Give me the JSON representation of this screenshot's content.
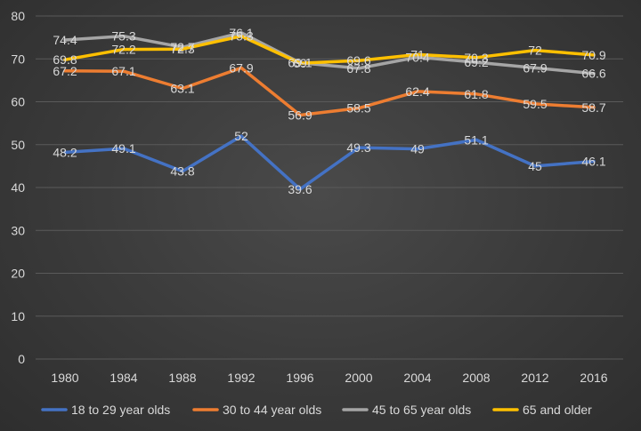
{
  "chart_data": {
    "type": "line",
    "title": "",
    "xlabel": "",
    "ylabel": "",
    "categories": [
      "1980",
      "1984",
      "1988",
      "1992",
      "1996",
      "2000",
      "2004",
      "2008",
      "2012",
      "2016"
    ],
    "ylim": [
      0,
      80
    ],
    "yticks": [
      0,
      10,
      20,
      30,
      40,
      50,
      60,
      70,
      80
    ],
    "grid": true,
    "legend_position": "bottom",
    "series": [
      {
        "name": "18 to 29 year olds",
        "color": "#4472c4",
        "values": [
          48.2,
          49.1,
          43.8,
          52,
          39.6,
          49.3,
          49,
          51.1,
          45,
          46.1
        ]
      },
      {
        "name": "30 to 44 year olds",
        "color": "#ed7d31",
        "values": [
          67.2,
          67.1,
          63.1,
          67.9,
          56.9,
          58.5,
          62.4,
          61.8,
          59.5,
          58.7
        ]
      },
      {
        "name": "45 to 65 year olds",
        "color": "#a5a5a5",
        "values": [
          74.4,
          75.3,
          72.7,
          76.1,
          69.1,
          67.8,
          70.4,
          69.2,
          67.9,
          66.6
        ]
      },
      {
        "name": "65 and older",
        "color": "#ffc000",
        "values": [
          69.8,
          72.2,
          72.3,
          75.3,
          69,
          69.6,
          71,
          70.3,
          72,
          70.9
        ]
      }
    ]
  }
}
